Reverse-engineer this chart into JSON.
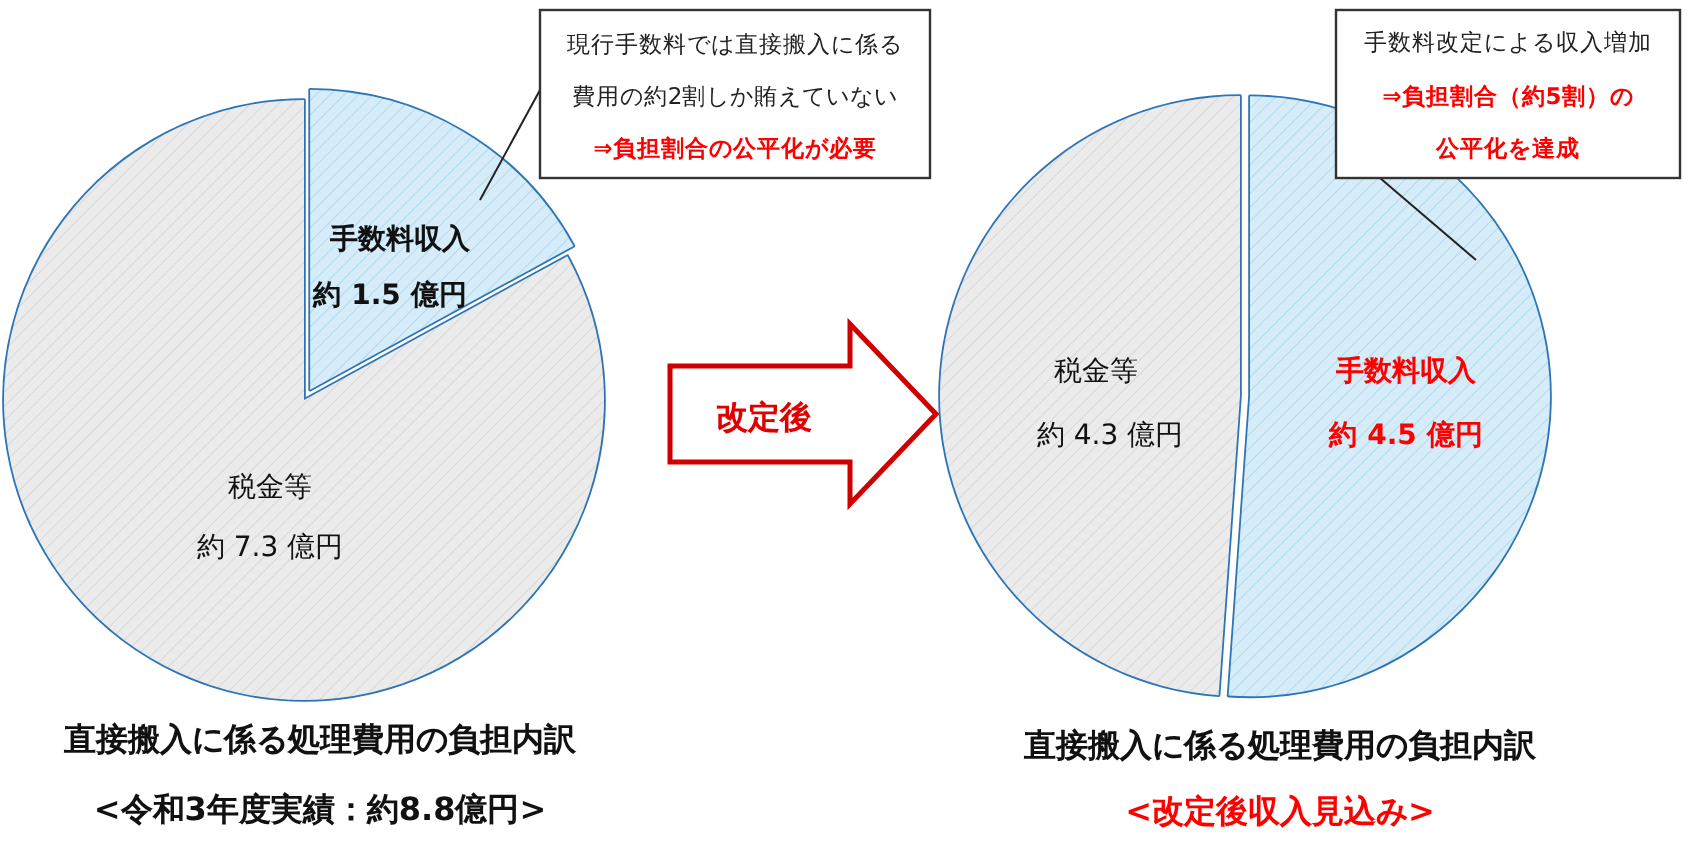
{
  "chart_data": [
    {
      "type": "pie",
      "title": "直接搬入に係る処理費用の負担内訳",
      "subtitle": "<令和3年度実績：約8.8億円>",
      "categories": [
        "手数料収入",
        "税金等"
      ],
      "values": [
        1.5,
        7.3
      ],
      "colors": [
        "#d6ecf8",
        "#ebebeb"
      ],
      "value_labels": [
        "約 1.5 億円",
        "約 7.3 億円"
      ],
      "annotations": [
        "現行手数料では直接搬入に係る",
        "費用の約2割しか賄えていない",
        "⇒負担割合の公平化が必要"
      ]
    },
    {
      "type": "pie",
      "title": "直接搬入に係る処理費用の負担内訳",
      "subtitle": "<改定後収入見込み>",
      "categories": [
        "手数料収入",
        "税金等"
      ],
      "values": [
        4.5,
        4.3
      ],
      "colors": [
        "#d6ecf8",
        "#ebebeb"
      ],
      "value_labels": [
        "約 4.5 億円",
        "約 4.3 億円"
      ],
      "annotations": [
        "改定後",
        "手数料改定による収入増加",
        "⇒負担割合（約5割）の",
        "公平化を達成"
      ]
    }
  ]
}
